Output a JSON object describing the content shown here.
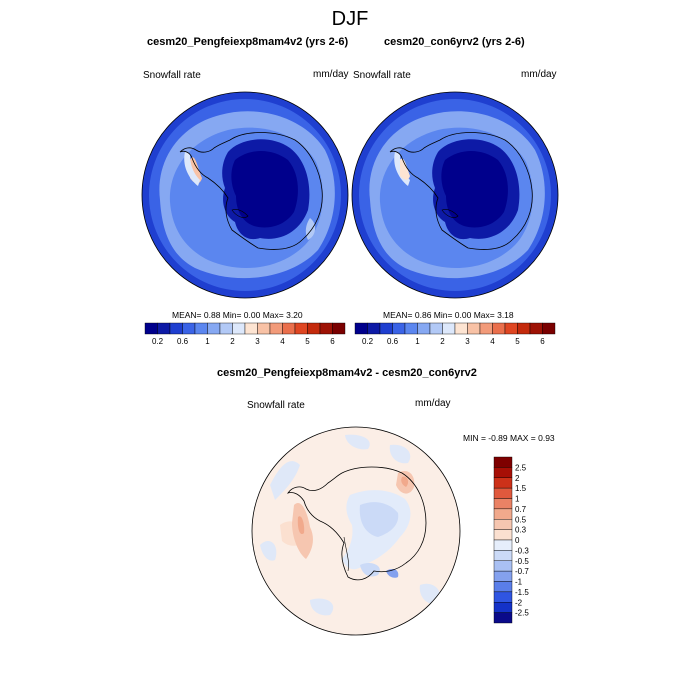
{
  "season": "DJF",
  "left_panel": {
    "title": "cesm20_Pengfeiexp8mam4v2 (yrs 2-6)",
    "variable": "Snowfall rate",
    "units": "mm/day",
    "stats": "MEAN=   0.88  Min=   0.00  Max=   3.20"
  },
  "right_panel": {
    "title": "cesm20_con6yrv2 (yrs 2-6)",
    "variable": "Snowfall rate",
    "units": "mm/day",
    "stats": "MEAN=   0.86  Min=   0.00  Max=   3.18"
  },
  "diff_panel": {
    "title": "cesm20_Pengfeiexp8mam4v2 - cesm20_con6yrv2",
    "variable": "Snowfall rate",
    "units": "mm/day",
    "stats": "MIN =  -0.89 MAX =   0.93"
  },
  "colors": {
    "seq_colorbar": [
      "#00008c",
      "#0d1aa6",
      "#1f3fd0",
      "#3a63e6",
      "#5b86ef",
      "#86a8f2",
      "#b2c9f6",
      "#dde8fb",
      "#fde4d2",
      "#f8c2a6",
      "#f29b7a",
      "#ea6f4c",
      "#df4622",
      "#c42a0c",
      "#9e1205",
      "#7a0000"
    ],
    "seq_ticks": [
      "0.2",
      "0.6",
      "1",
      "2",
      "3",
      "4",
      "5",
      "6"
    ],
    "diff_colorbar": [
      "#0a0a8a",
      "#1432c8",
      "#2f55e2",
      "#5a7ee9",
      "#84a1ee",
      "#a9c0f3",
      "#cbdaf7",
      "#e6eefb",
      "#fbe0d0",
      "#f6c6b0",
      "#f1a98c",
      "#ea8265",
      "#e0593d",
      "#cd3119",
      "#a70f06",
      "#7e0000"
    ],
    "diff_ticks": [
      "2.5",
      "2",
      "1.5",
      "1",
      "0.7",
      "0.5",
      "0.3",
      "0",
      "-0.3",
      "-0.5",
      "-0.7",
      "-1",
      "-1.5",
      "-2",
      "-2.5"
    ]
  }
}
